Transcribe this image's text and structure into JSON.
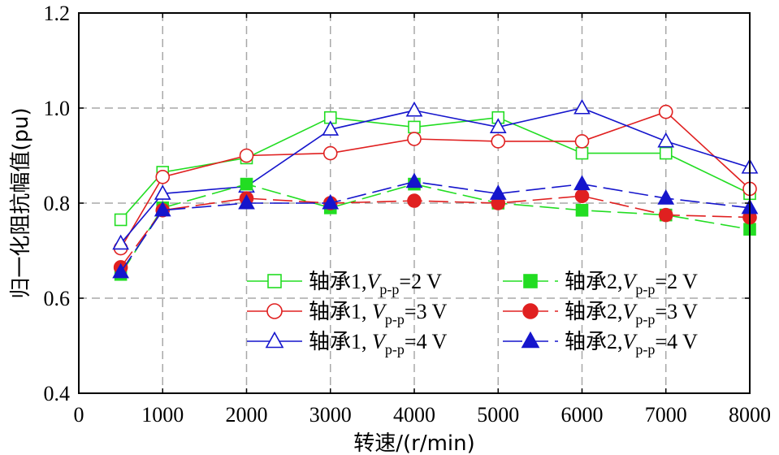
{
  "chart_data": {
    "type": "line",
    "xlabel": "转速/(r/min)",
    "ylabel": "归一化阻抗幅值(pu)",
    "xlim": [
      0,
      8000
    ],
    "ylim": [
      0.4,
      1.2
    ],
    "xticks": [
      0,
      1000,
      2000,
      3000,
      4000,
      5000,
      6000,
      7000,
      8000
    ],
    "yticks": [
      0.4,
      0.6,
      0.8,
      1.0,
      1.2
    ],
    "xtick_labels": [
      "0",
      "1000",
      "2000",
      "3000",
      "4000",
      "5000",
      "6000",
      "7000",
      "8000"
    ],
    "ytick_labels": [
      "0.4",
      "0.6",
      "0.8",
      "1.0",
      "1.2"
    ],
    "grid": true,
    "legend_position": "bottom-right",
    "x": [
      500,
      1000,
      2000,
      3000,
      4000,
      5000,
      6000,
      7000,
      8000
    ],
    "series": [
      {
        "name": "轴承1,V_p-p=2 V",
        "legend": {
          "prefix": "轴承1,",
          "var": "V",
          "sub": "p-p",
          "suffix": "=2 V"
        },
        "color": "#22dd22",
        "marker": "square",
        "filled": false,
        "dashed": false,
        "values": [
          0.765,
          0.865,
          0.895,
          0.98,
          0.96,
          0.98,
          0.905,
          0.905,
          0.82
        ]
      },
      {
        "name": "轴承1, V_p-p=3 V",
        "legend": {
          "prefix": "轴承1, ",
          "var": "V",
          "sub": "p-p",
          "suffix": "=3 V"
        },
        "color": "#e02020",
        "marker": "circle",
        "filled": false,
        "dashed": false,
        "values": [
          0.705,
          0.855,
          0.9,
          0.905,
          0.935,
          0.93,
          0.93,
          0.992,
          0.83
        ]
      },
      {
        "name": "轴承1, V_p-p=4 V",
        "legend": {
          "prefix": "轴承1, ",
          "var": "V",
          "sub": "p-p",
          "suffix": "=4 V"
        },
        "color": "#1515cc",
        "marker": "triangle",
        "filled": false,
        "dashed": false,
        "values": [
          0.715,
          0.82,
          0.835,
          0.955,
          0.995,
          0.96,
          1.0,
          0.93,
          0.875
        ]
      },
      {
        "name": "轴承2,V_p-p=2 V",
        "legend": {
          "prefix": "轴承2,",
          "var": "V",
          "sub": "p-p",
          "suffix": "=2 V"
        },
        "color": "#22dd22",
        "marker": "square",
        "filled": true,
        "dashed": true,
        "values": [
          0.65,
          0.79,
          0.84,
          0.79,
          0.84,
          0.8,
          0.785,
          0.775,
          0.745
        ]
      },
      {
        "name": "轴承2,V_p-p=3 V",
        "legend": {
          "prefix": "轴承2,",
          "var": "V",
          "sub": "p-p",
          "suffix": "=3 V"
        },
        "color": "#e02020",
        "marker": "circle",
        "filled": true,
        "dashed": true,
        "values": [
          0.665,
          0.785,
          0.81,
          0.8,
          0.805,
          0.8,
          0.815,
          0.775,
          0.77
        ]
      },
      {
        "name": "轴承2,V_p-p=4 V",
        "legend": {
          "prefix": "轴承2,",
          "var": "V",
          "sub": "p-p",
          "suffix": "=4 V"
        },
        "color": "#1515cc",
        "marker": "triangle",
        "filled": true,
        "dashed": true,
        "values": [
          0.655,
          0.785,
          0.8,
          0.8,
          0.845,
          0.82,
          0.84,
          0.81,
          0.79
        ]
      }
    ]
  }
}
